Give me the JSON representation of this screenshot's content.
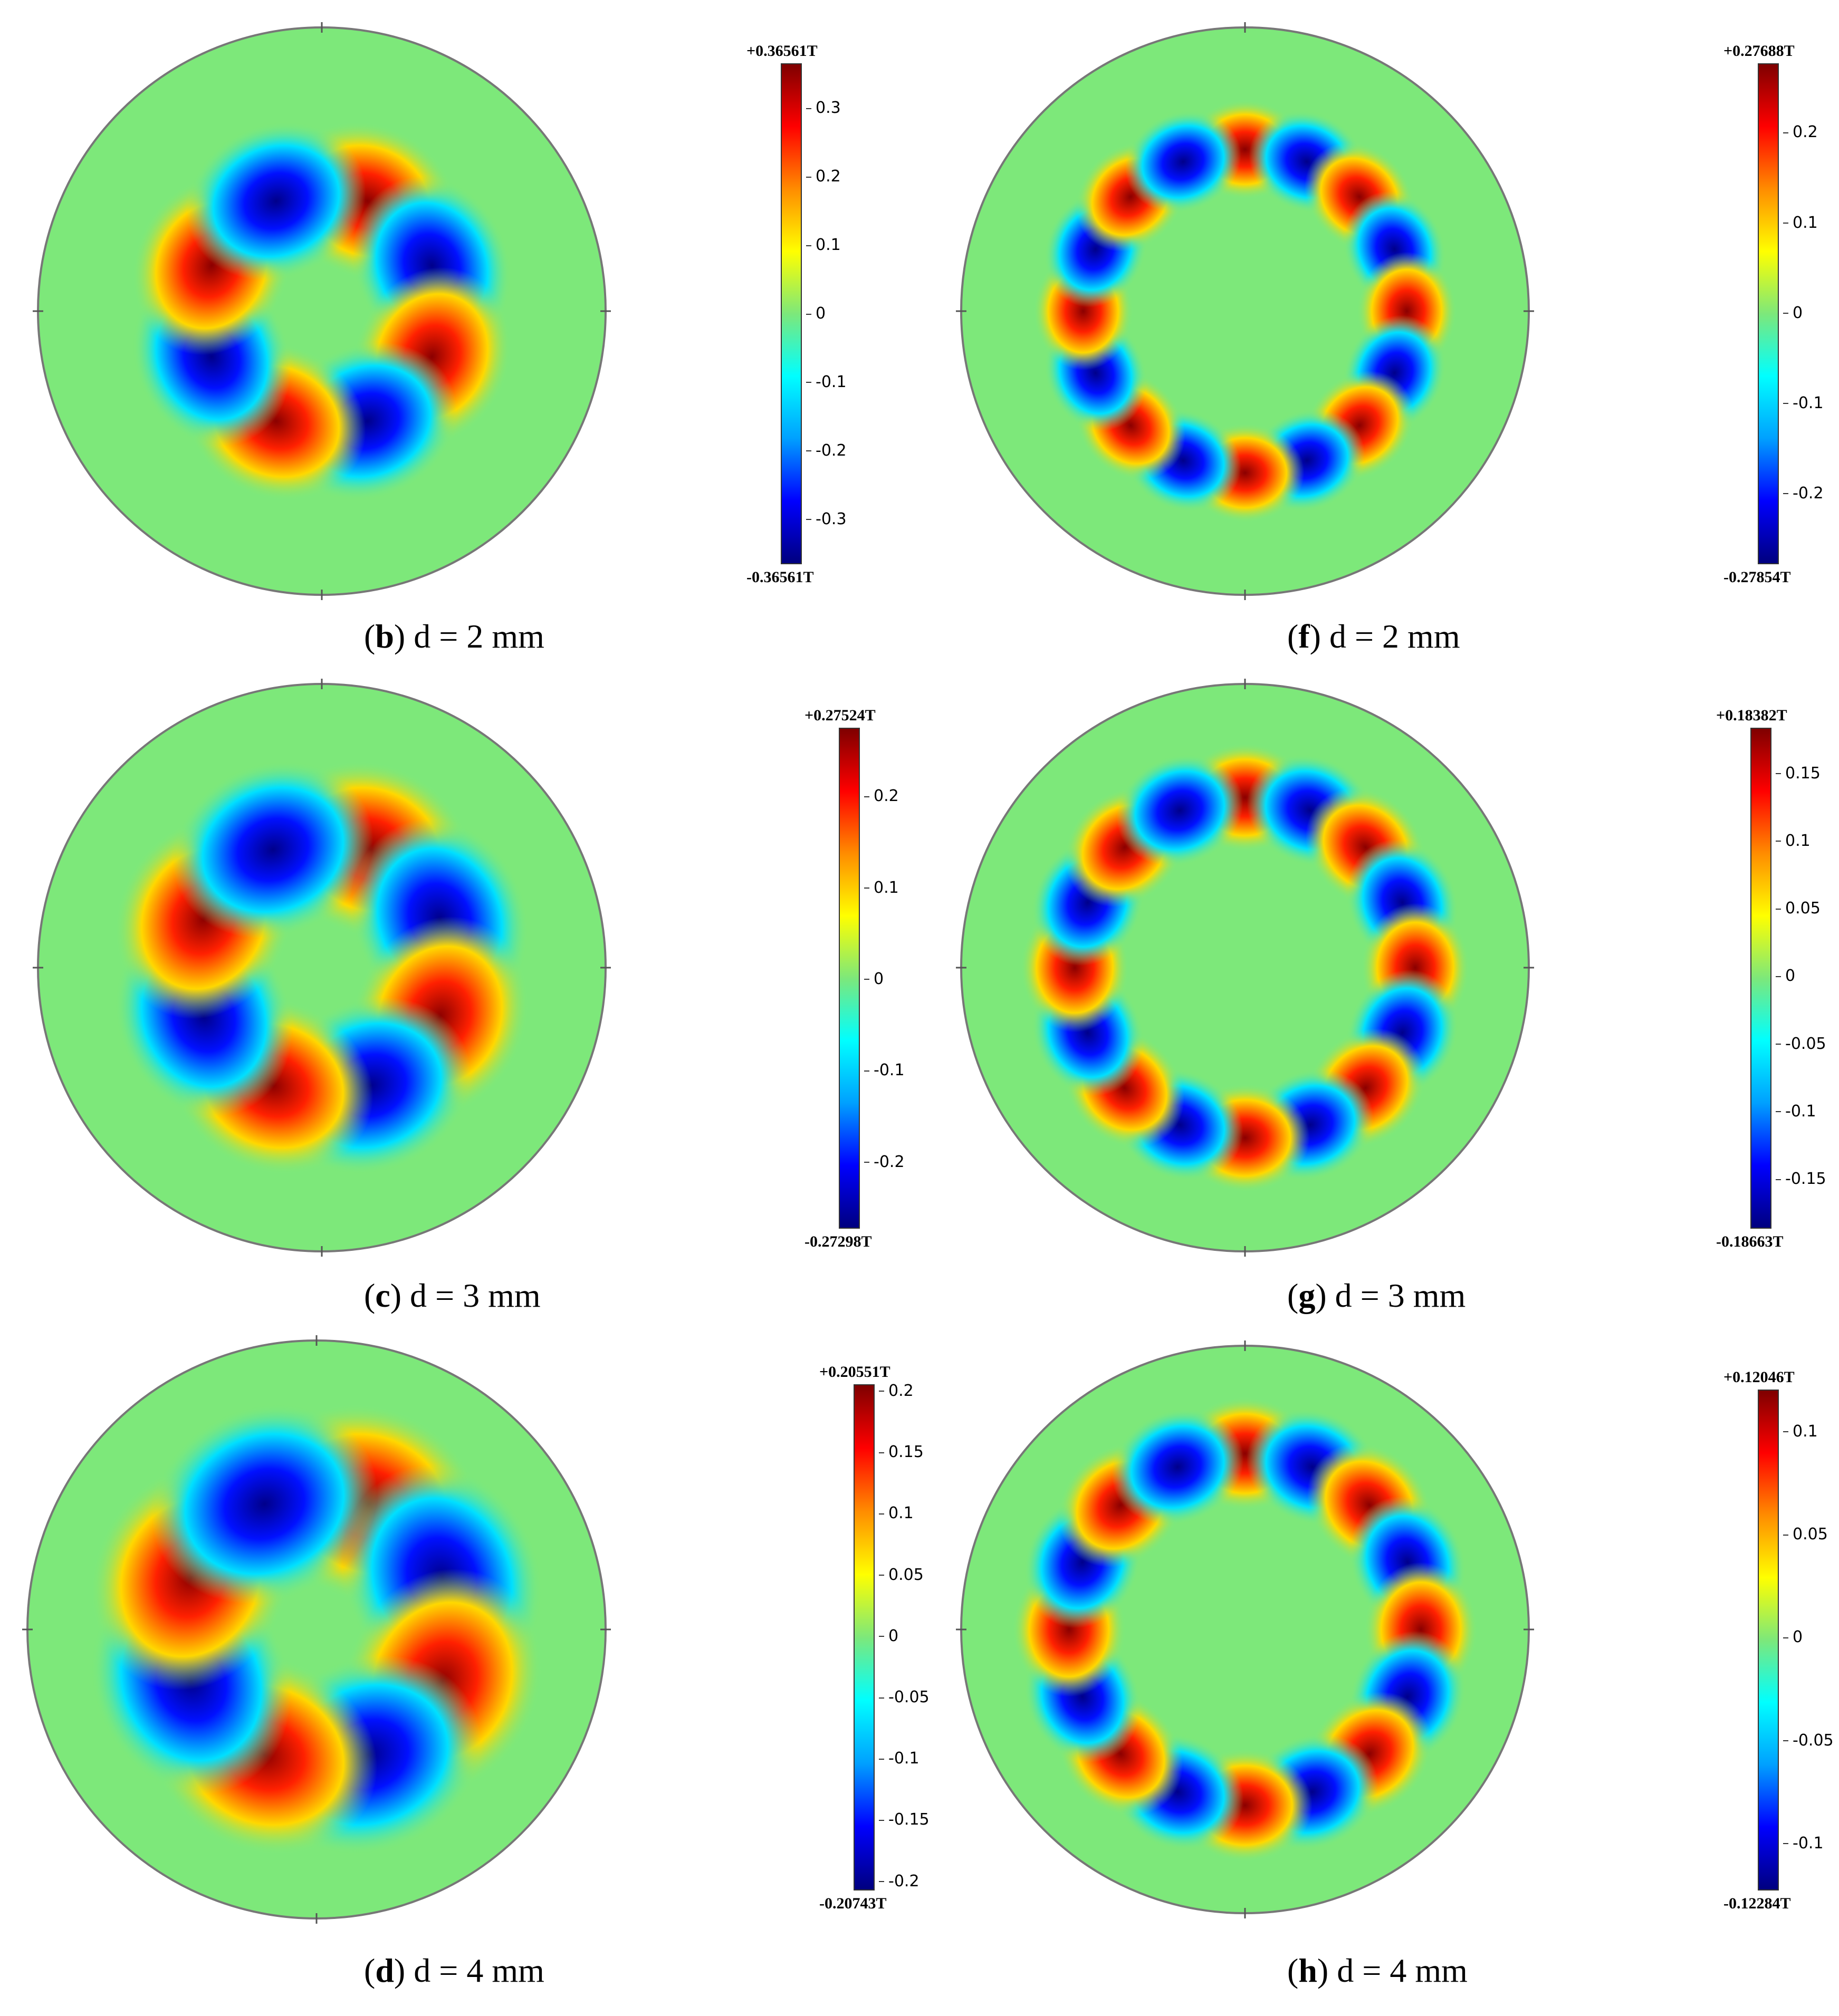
{
  "colors": {
    "field_background": "#7de87a",
    "positive_peak": "#8b0000",
    "negative_peak": "#00008b",
    "colormap": [
      "#00007f",
      "#0000ff",
      "#00a0ff",
      "#00ffff",
      "#7de87a",
      "#ffff00",
      "#ff8c00",
      "#ff0000",
      "#7f0000"
    ]
  },
  "panels": [
    {
      "id": "b",
      "caption_letter": "b",
      "caption_text": " d = 2 mm",
      "poles": 8,
      "spot_radius_fraction": 0.42,
      "spot_size": 0.17,
      "colorbar": {
        "max_label": "+0.36561T",
        "min_label": "-0.36561T",
        "max": 0.36561,
        "min": -0.36561,
        "ticks": [
          {
            "v": 0.3,
            "t": "0.3"
          },
          {
            "v": 0.2,
            "t": "0.2"
          },
          {
            "v": 0.1,
            "t": "0.1"
          },
          {
            "v": 0,
            "t": "0"
          },
          {
            "v": -0.1,
            "t": "-0.1"
          },
          {
            "v": -0.2,
            "t": "-0.2"
          },
          {
            "v": -0.3,
            "t": "-0.3"
          }
        ]
      }
    },
    {
      "id": "f",
      "caption_letter": "f",
      "caption_text": " d = 2 mm",
      "poles": 16,
      "spot_radius_fraction": 0.57,
      "spot_size": 0.11,
      "colorbar": {
        "max_label": "+0.27688T",
        "min_label": "-0.27854T",
        "max": 0.27688,
        "min": -0.27854,
        "ticks": [
          {
            "v": 0.2,
            "t": "0.2"
          },
          {
            "v": 0.1,
            "t": "0.1"
          },
          {
            "v": 0,
            "t": "0"
          },
          {
            "v": -0.1,
            "t": "-0.1"
          },
          {
            "v": -0.2,
            "t": "-0.2"
          }
        ]
      }
    },
    {
      "id": "c",
      "caption_letter": "c",
      "caption_text": " d = 3 mm",
      "poles": 8,
      "spot_radius_fraction": 0.45,
      "spot_size": 0.19,
      "colorbar": {
        "max_label": "+0.27524T",
        "min_label": "-0.27298T",
        "max": 0.27524,
        "min": -0.27298,
        "ticks": [
          {
            "v": 0.2,
            "t": "0.2"
          },
          {
            "v": 0.1,
            "t": "0.1"
          },
          {
            "v": 0,
            "t": "0"
          },
          {
            "v": -0.1,
            "t": "-0.1"
          },
          {
            "v": -0.2,
            "t": "-0.2"
          }
        ]
      }
    },
    {
      "id": "g",
      "caption_letter": "g",
      "caption_text": " d = 3 mm",
      "poles": 16,
      "spot_radius_fraction": 0.6,
      "spot_size": 0.12,
      "colorbar": {
        "max_label": "+0.18382T",
        "min_label": "-0.18663T",
        "max": 0.18382,
        "min": -0.18663,
        "ticks": [
          {
            "v": 0.15,
            "t": "0.15"
          },
          {
            "v": 0.1,
            "t": "0.1"
          },
          {
            "v": 0.05,
            "t": "0.05"
          },
          {
            "v": 0,
            "t": "0"
          },
          {
            "v": -0.05,
            "t": "-0.05"
          },
          {
            "v": -0.1,
            "t": "-0.1"
          },
          {
            "v": -0.15,
            "t": "-0.15"
          }
        ]
      }
    },
    {
      "id": "d",
      "caption_letter": "d",
      "caption_text": " d = 4 mm",
      "poles": 8,
      "spot_radius_fraction": 0.47,
      "spot_size": 0.21,
      "colorbar": {
        "max_label": "+0.20551T",
        "min_label": "-0.20743T",
        "max": 0.20551,
        "min": -0.20743,
        "ticks": [
          {
            "v": 0.2,
            "t": "0.2"
          },
          {
            "v": 0.15,
            "t": "0.15"
          },
          {
            "v": 0.1,
            "t": "0.1"
          },
          {
            "v": 0.05,
            "t": "0.05"
          },
          {
            "v": 0,
            "t": "0"
          },
          {
            "v": -0.05,
            "t": "-0.05"
          },
          {
            "v": -0.1,
            "t": "-0.1"
          },
          {
            "v": -0.15,
            "t": "-0.15"
          },
          {
            "v": -0.2,
            "t": "-0.2"
          }
        ]
      }
    },
    {
      "id": "h",
      "caption_letter": "h",
      "caption_text": " d = 4 mm",
      "poles": 16,
      "spot_radius_fraction": 0.62,
      "spot_size": 0.125,
      "colorbar": {
        "max_label": "+0.12046T",
        "min_label": "-0.12284T",
        "max": 0.12046,
        "min": -0.12284,
        "ticks": [
          {
            "v": 0.1,
            "t": "0.1"
          },
          {
            "v": 0.05,
            "t": "0.05"
          },
          {
            "v": 0,
            "t": "0"
          },
          {
            "v": -0.05,
            "t": "-0.05"
          },
          {
            "v": -0.1,
            "t": "-0.1"
          }
        ]
      }
    }
  ]
}
